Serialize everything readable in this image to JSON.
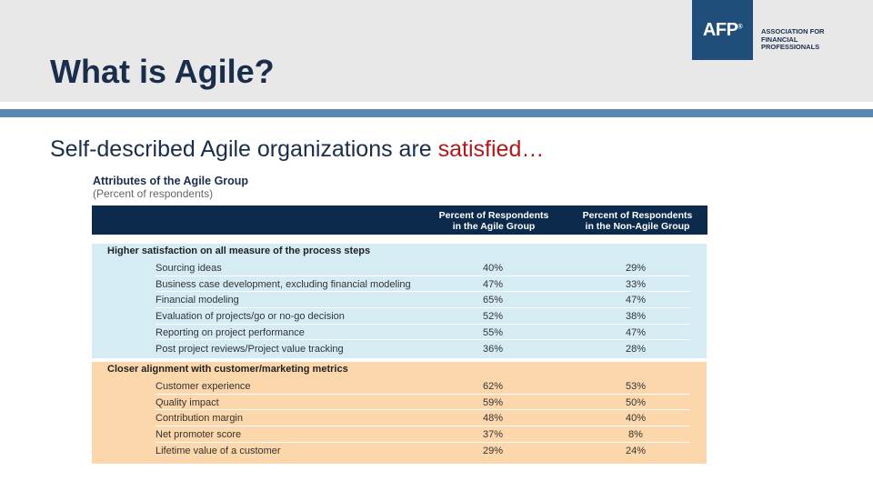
{
  "slide": {
    "title": "What is Agile?",
    "subtitle_main": "Self-described Agile organizations are ",
    "subtitle_accent": "satisfied…"
  },
  "logo": {
    "mark": "AFP",
    "reg": "®",
    "line1": "ASSOCIATION FOR",
    "line2": "FINANCIAL",
    "line3": "PROFESSIONALS"
  },
  "table": {
    "title": "Attributes of the Agile Group",
    "subtitle": "(Percent of respondents)",
    "columns": [
      {
        "line1": "Percent of Respondents",
        "line2": "in the Agile Group"
      },
      {
        "line1": "Percent of Respondents",
        "line2": "in the Non-Agile Group"
      }
    ],
    "sections": [
      {
        "label": "Higher satisfaction on all measure of the process steps",
        "rows": [
          {
            "label": "Sourcing ideas",
            "agile": "40%",
            "non_agile": "29%"
          },
          {
            "label": "Business case development, excluding financial modeling",
            "agile": "47%",
            "non_agile": "33%"
          },
          {
            "label": "Financial modeling",
            "agile": "65%",
            "non_agile": "47%"
          },
          {
            "label": "Evaluation of projects/go or no-go decision",
            "agile": "52%",
            "non_agile": "38%"
          },
          {
            "label": "Reporting on project performance",
            "agile": "55%",
            "non_agile": "47%"
          },
          {
            "label": "Post project reviews/Project value tracking",
            "agile": "36%",
            "non_agile": "28%"
          }
        ]
      },
      {
        "label": "Closer alignment with customer/marketing metrics",
        "rows": [
          {
            "label": "Customer experience",
            "agile": "62%",
            "non_agile": "53%"
          },
          {
            "label": "Quality impact",
            "agile": "59%",
            "non_agile": "50%"
          },
          {
            "label": "Contribution margin",
            "agile": "48%",
            "non_agile": "40%"
          },
          {
            "label": "Net promoter score",
            "agile": "37%",
            "non_agile": "8%"
          },
          {
            "label": "Lifetime value of a customer",
            "agile": "29%",
            "non_agile": "24%"
          }
        ]
      }
    ]
  }
}
